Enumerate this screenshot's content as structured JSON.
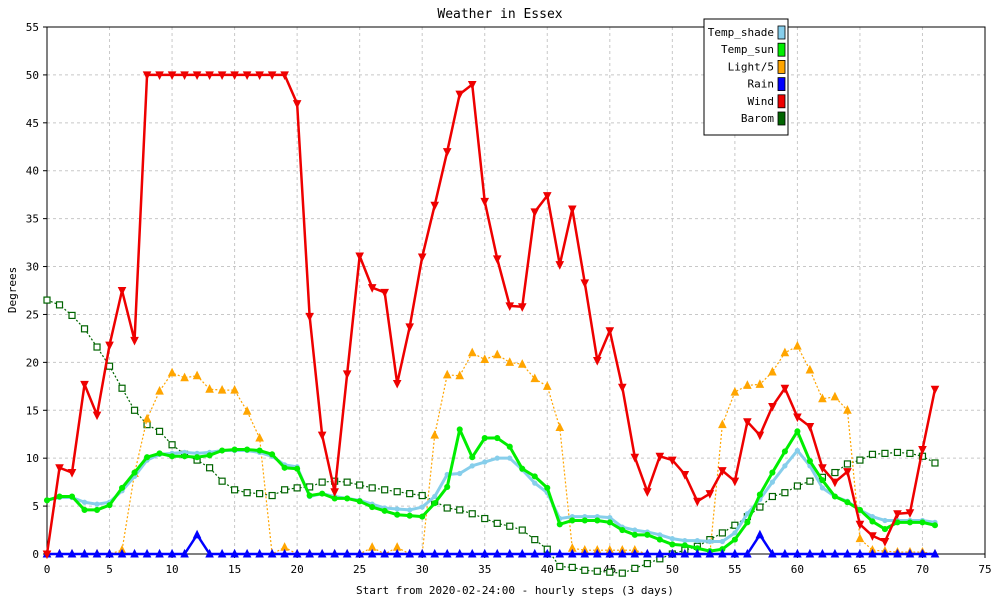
{
  "chart_data": {
    "type": "line",
    "title": "Weather in Essex",
    "xlabel": "Start from 2020-02-24:00 - hourly steps (3 days)",
    "ylabel": "Degrees",
    "xlim": [
      0,
      75
    ],
    "ylim": [
      0,
      55
    ],
    "xticks": [
      0,
      5,
      10,
      15,
      20,
      25,
      30,
      35,
      40,
      45,
      50,
      55,
      60,
      65,
      70,
      75
    ],
    "yticks": [
      0,
      5,
      10,
      15,
      20,
      25,
      30,
      35,
      40,
      45,
      50,
      55
    ],
    "grid": true,
    "legend_position": "top-right",
    "series": [
      {
        "name": "Temp_shade",
        "color": "#87ceeb",
        "marker": "circle",
        "values": [
          5.6,
          5.9,
          5.9,
          5.4,
          5.2,
          5.4,
          6.6,
          8.1,
          9.8,
          10.4,
          10.5,
          10.6,
          10.5,
          10.6,
          10.8,
          10.8,
          10.8,
          10.6,
          10.2,
          9.3,
          9.1,
          6.0,
          6.3,
          6.0,
          5.8,
          5.6,
          5.2,
          4.8,
          4.7,
          4.6,
          4.9,
          6.0,
          8.3,
          8.4,
          9.2,
          9.6,
          10.0,
          10.0,
          8.8,
          7.4,
          6.4,
          3.7,
          3.9,
          3.9,
          3.9,
          3.8,
          2.8,
          2.5,
          2.3,
          2.0,
          1.6,
          1.4,
          1.4,
          1.3,
          1.3,
          2.2,
          4.2,
          5.7,
          7.5,
          9.2,
          10.8,
          9.2,
          6.9,
          6.0,
          5.5,
          4.6,
          3.9,
          3.5,
          3.5,
          3.5,
          3.5,
          3.3
        ]
      },
      {
        "name": "Temp_sun",
        "color": "#00ee00",
        "marker": "circle",
        "values": [
          5.6,
          6.0,
          6.0,
          4.6,
          4.6,
          5.1,
          6.9,
          8.5,
          10.1,
          10.5,
          10.2,
          10.2,
          10.1,
          10.3,
          10.8,
          10.9,
          10.9,
          10.8,
          10.4,
          9.0,
          8.9,
          6.1,
          6.3,
          5.8,
          5.8,
          5.5,
          4.9,
          4.5,
          4.1,
          4.0,
          3.9,
          5.3,
          7.0,
          13.0,
          10.1,
          12.1,
          12.1,
          11.2,
          8.9,
          8.1,
          6.9,
          3.1,
          3.5,
          3.5,
          3.5,
          3.3,
          2.5,
          2.0,
          2.0,
          1.5,
          1.0,
          0.9,
          0.6,
          0.3,
          0.5,
          1.5,
          3.3,
          6.2,
          8.5,
          10.7,
          12.8,
          9.7,
          7.7,
          6.0,
          5.4,
          4.6,
          3.4,
          2.6,
          3.3,
          3.3,
          3.3,
          3.0
        ]
      },
      {
        "name": "Light/5",
        "color": "#ffa500",
        "marker": "triangle-up",
        "values": [
          0,
          0,
          0,
          0,
          0,
          0,
          0.4,
          8.4,
          14.1,
          17.0,
          18.9,
          18.4,
          18.6,
          17.2,
          17.1,
          17.1,
          14.9,
          12.1,
          0,
          0.7,
          0,
          0,
          0,
          0,
          0,
          0,
          0.7,
          0,
          0.7,
          0,
          0,
          12.4,
          18.7,
          18.6,
          21.0,
          20.3,
          20.8,
          20.0,
          19.8,
          18.3,
          17.5,
          13.2,
          0.6,
          0.4,
          0.4,
          0.4,
          0.4,
          0.4,
          0,
          0,
          0,
          0,
          0,
          0,
          13.5,
          16.9,
          17.6,
          17.7,
          19.0,
          21.0,
          21.7,
          19.2,
          16.2,
          16.4,
          15.0,
          1.6,
          0.4,
          0.3,
          0.2,
          0.2,
          0.2,
          0
        ]
      },
      {
        "name": "Rain",
        "color": "#0000ff",
        "marker": "triangle-up",
        "values": [
          0,
          0,
          0,
          0,
          0,
          0,
          0,
          0,
          0,
          0,
          0,
          0,
          2.0,
          0,
          0,
          0,
          0,
          0,
          0,
          0,
          0,
          0,
          0,
          0,
          0,
          0,
          0,
          0,
          0,
          0,
          0,
          0,
          0,
          0,
          0,
          0,
          0,
          0,
          0,
          0,
          0,
          0,
          0,
          0,
          0,
          0,
          0,
          0,
          0,
          0,
          0,
          0,
          0,
          0,
          0,
          0,
          0,
          2.0,
          0,
          0,
          0,
          0,
          0,
          0,
          0,
          0,
          0,
          0,
          0,
          0,
          0,
          0
        ]
      },
      {
        "name": "Wind",
        "color": "#ee0000",
        "marker": "triangle-down",
        "values": [
          0,
          9.0,
          8.5,
          17.7,
          14.5,
          21.8,
          27.5,
          22.3,
          50.0,
          50.0,
          50.0,
          50.0,
          50.0,
          50.0,
          50.0,
          50.0,
          50.0,
          50.0,
          50.0,
          50.0,
          47.0,
          24.8,
          12.4,
          6.5,
          18.8,
          31.1,
          27.8,
          27.3,
          17.8,
          23.7,
          31.0,
          36.4,
          42.0,
          48.0,
          49.0,
          36.8,
          30.8,
          25.9,
          25.8,
          35.7,
          37.4,
          30.2,
          36.0,
          28.3,
          20.2,
          23.3,
          17.4,
          10.1,
          6.5,
          10.2,
          9.8,
          8.3,
          5.5,
          6.3,
          8.7,
          7.6,
          13.8,
          12.4,
          15.4,
          17.3,
          14.3,
          13.3,
          9.0,
          7.5,
          8.6,
          3.1,
          1.9,
          1.3,
          4.2,
          4.3,
          10.9,
          17.2
        ]
      },
      {
        "name": "Barom",
        "color": "#006400",
        "marker": "square",
        "values": [
          26.5,
          26.0,
          24.9,
          23.5,
          21.6,
          19.6,
          17.3,
          15.0,
          13.5,
          12.8,
          11.4,
          10.4,
          9.8,
          9.0,
          7.6,
          6.7,
          6.4,
          6.3,
          6.1,
          6.7,
          6.9,
          7.0,
          7.5,
          7.6,
          7.5,
          7.2,
          6.9,
          6.7,
          6.5,
          6.3,
          6.1,
          5.5,
          4.8,
          4.6,
          4.2,
          3.7,
          3.2,
          2.9,
          2.5,
          1.5,
          0.5,
          -1.3,
          -1.4,
          -1.7,
          -1.8,
          -1.9,
          -2.0,
          -1.5,
          -1.0,
          -0.5,
          0,
          0.4,
          0.8,
          1.5,
          2.2,
          3.0,
          3.9,
          4.9,
          6.0,
          6.4,
          7.1,
          7.6,
          8.0,
          8.5,
          9.4,
          9.8,
          10.4,
          10.5,
          10.6,
          10.5,
          10.2,
          9.5
        ]
      }
    ]
  }
}
